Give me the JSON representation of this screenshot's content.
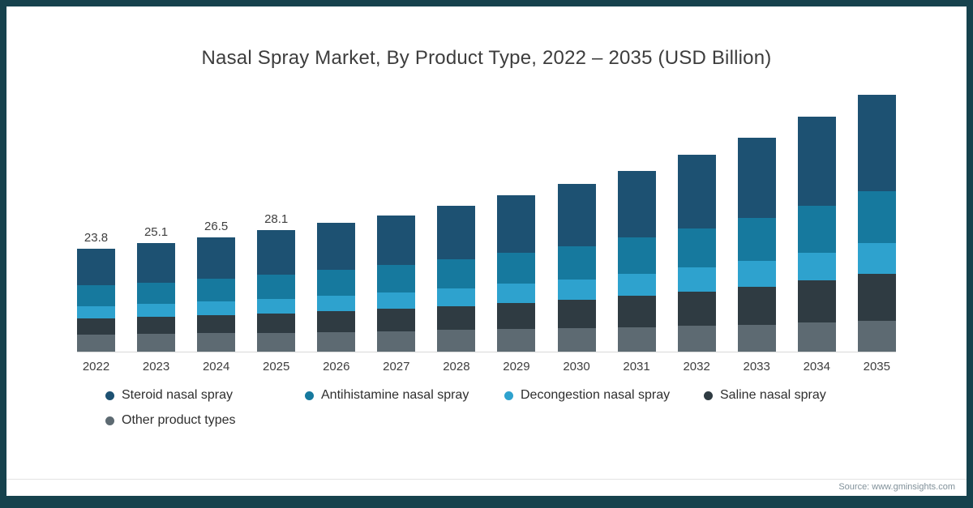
{
  "page": {
    "frame_color": "#16424d",
    "background_color": "#ffffff",
    "axis_line_color": "#d8d8d8"
  },
  "footer": {
    "source": "Source: www.gminsights.com"
  },
  "chart_data": {
    "type": "bar",
    "stacked": true,
    "title": "Nasal Spray Market, By Product Type, 2022 – 2035 (USD Billion)",
    "unit": "USD Billion",
    "categories": [
      "2022",
      "2023",
      "2024",
      "2025",
      "2026",
      "2027",
      "2028",
      "2029",
      "2030",
      "2031",
      "2032",
      "2033",
      "2034",
      "2035"
    ],
    "totals": [
      23.8,
      25.1,
      26.5,
      28.1,
      29.8,
      31.6,
      33.8,
      36.2,
      38.9,
      42.0,
      45.6,
      49.7,
      54.4,
      59.6
    ],
    "total_labels_shown": [
      "23.8",
      "25.1",
      "26.5",
      "28.1"
    ],
    "series": [
      {
        "name": "Steroid nasal spray",
        "color": "#1d5172",
        "values": [
          8.4,
          9.1,
          9.5,
          10.2,
          10.8,
          11.5,
          12.3,
          13.3,
          14.4,
          15.5,
          17.0,
          18.7,
          20.5,
          22.4
        ]
      },
      {
        "name": "Antihistamine nasal spray",
        "color": "#16799e",
        "values": [
          4.8,
          5.0,
          5.3,
          5.6,
          6.0,
          6.3,
          6.8,
          7.2,
          7.8,
          8.4,
          9.1,
          9.9,
          10.9,
          12.0
        ]
      },
      {
        "name": "Decongestion nasal spray",
        "color": "#2ea2ce",
        "values": [
          2.9,
          3.0,
          3.2,
          3.4,
          3.6,
          3.8,
          4.1,
          4.4,
          4.7,
          5.1,
          5.5,
          6.0,
          6.5,
          7.2
        ]
      },
      {
        "name": "Saline nasal spray",
        "color": "#2f3b42",
        "values": [
          3.7,
          3.9,
          4.2,
          4.5,
          4.8,
          5.2,
          5.6,
          6.1,
          6.6,
          7.3,
          8.0,
          8.8,
          9.8,
          10.9
        ]
      },
      {
        "name": "Other product types",
        "color": "#5d6a72",
        "values": [
          4.0,
          4.1,
          4.3,
          4.4,
          4.6,
          4.8,
          5.0,
          5.2,
          5.4,
          5.7,
          6.0,
          6.3,
          6.7,
          7.1
        ]
      }
    ],
    "stack_order_bottom_to_top": [
      "Other product types",
      "Saline nasal spray",
      "Decongestion nasal spray",
      "Antihistamine nasal spray",
      "Steroid nasal spray"
    ],
    "ylim": [
      0,
      62
    ],
    "grid": false,
    "legend_position": "bottom",
    "xlabel": "",
    "ylabel": ""
  }
}
